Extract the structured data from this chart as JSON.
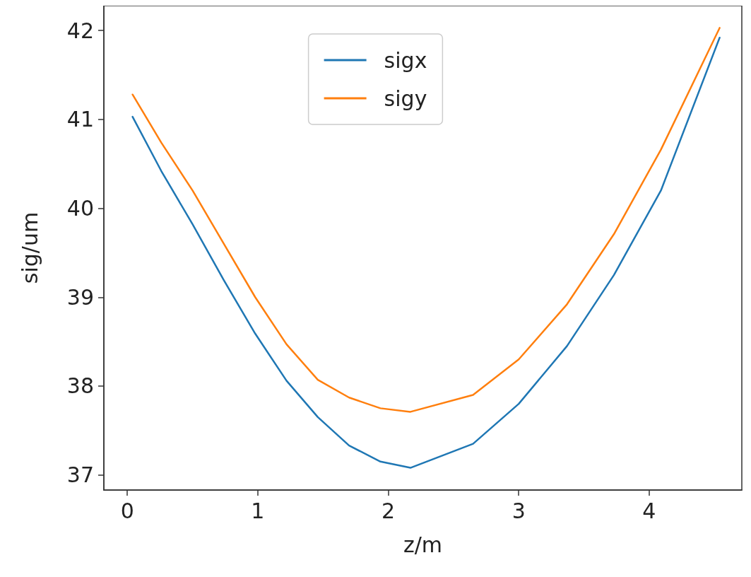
{
  "chart_data": {
    "type": "line",
    "xlabel": "z/m",
    "ylabel": "sig/um",
    "series": [
      {
        "name": "sigx",
        "color": "#1f77b4",
        "x": [
          0.04,
          0.26,
          0.5,
          0.74,
          0.98,
          1.22,
          1.46,
          1.7,
          1.94,
          2.17,
          2.65,
          3.0,
          3.37,
          3.73,
          4.09,
          4.54
        ],
        "values": [
          41.03,
          40.42,
          39.82,
          39.19,
          38.59,
          38.06,
          37.65,
          37.33,
          37.15,
          37.08,
          37.35,
          37.8,
          38.45,
          39.25,
          40.2,
          41.92
        ]
      },
      {
        "name": "sigy",
        "color": "#ff7f0e",
        "x": [
          0.04,
          0.26,
          0.5,
          0.74,
          0.98,
          1.22,
          1.46,
          1.7,
          1.94,
          2.17,
          2.65,
          3.0,
          3.37,
          3.73,
          4.09,
          4.54
        ],
        "values": [
          41.28,
          40.74,
          40.2,
          39.6,
          39.0,
          38.47,
          38.07,
          37.87,
          37.75,
          37.71,
          37.9,
          38.3,
          38.92,
          39.71,
          40.66,
          42.03
        ]
      }
    ],
    "xlim": [
      -0.18,
      4.71
    ],
    "ylim": [
      36.83,
      42.28
    ],
    "xticks": [
      0,
      1,
      2,
      3,
      4
    ],
    "yticks": [
      37,
      38,
      39,
      40,
      41,
      42
    ],
    "grid": false,
    "legend": "top",
    "marker": "none",
    "line_style": "solid"
  }
}
